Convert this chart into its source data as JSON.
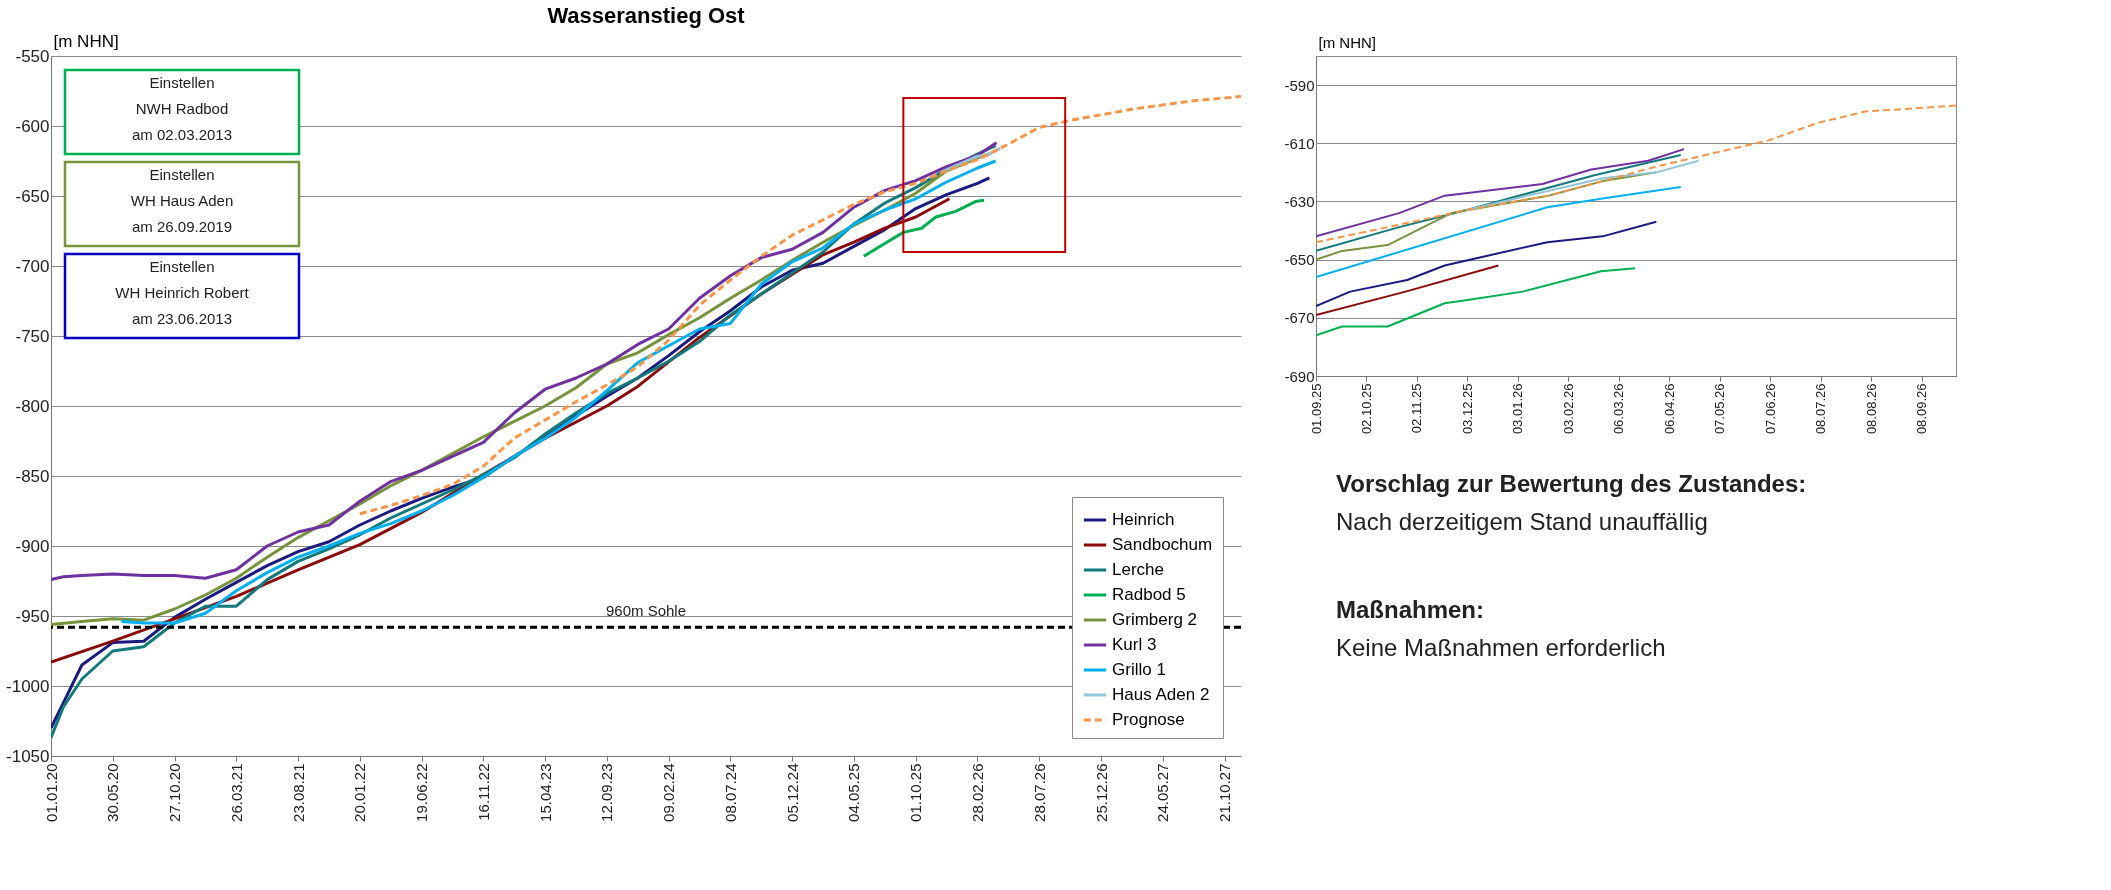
{
  "chart_data": [
    {
      "type": "line",
      "title": "Wasseranstieg Ost",
      "ylabel": "[m NHN]",
      "xlim": [
        "2020-01-01",
        "2027-11-30"
      ],
      "ylim": [
        -1050,
        -550
      ],
      "xticks": [
        {
          "value": "2020-01-01",
          "label": "01.01.20"
        },
        {
          "value": "2020-05-30",
          "label": "30.05.20"
        },
        {
          "value": "2020-10-27",
          "label": "27.10.20"
        },
        {
          "value": "2021-03-26",
          "label": "26.03.21"
        },
        {
          "value": "2021-08-23",
          "label": "23.08.21"
        },
        {
          "value": "2022-01-20",
          "label": "20.01.22"
        },
        {
          "value": "2022-06-19",
          "label": "19.06.22"
        },
        {
          "value": "2022-11-16",
          "label": "16.11.22"
        },
        {
          "value": "2023-04-15",
          "label": "15.04.23"
        },
        {
          "value": "2023-09-12",
          "label": "12.09.23"
        },
        {
          "value": "2024-02-09",
          "label": "09.02.24"
        },
        {
          "value": "2024-07-08",
          "label": "08.07.24"
        },
        {
          "value": "2024-12-05",
          "label": "05.12.24"
        },
        {
          "value": "2025-05-04",
          "label": "04.05.25"
        },
        {
          "value": "2025-10-01",
          "label": "01.10.25"
        },
        {
          "value": "2026-02-28",
          "label": "28.02.26"
        },
        {
          "value": "2026-07-28",
          "label": "28.07.26"
        },
        {
          "value": "2026-12-25",
          "label": "25.12.26"
        },
        {
          "value": "2027-05-24",
          "label": "24.05.27"
        },
        {
          "value": "2027-10-21",
          "label": "21.10.27"
        }
      ],
      "yticks": [
        -1050,
        -1000,
        -950,
        -900,
        -850,
        -800,
        -750,
        -700,
        -650,
        -600,
        -550
      ],
      "grid": "y",
      "legend": "bottom right",
      "line_style": "solid",
      "annotations": [
        "Einstellen\nNWH Radbod\nam 02.03.2013",
        "Einstellen\nWH Haus Aden\nam 26.09.2019",
        "Einstellen\nWH Heinrich Robert\nam 23.06.2013"
      ],
      "ref_lines": [
        {
          "axis": "y",
          "value": -958,
          "label": "960m Sohle",
          "color": "#000000",
          "line_style": "dashed"
        }
      ],
      "series": [
        {
          "name": "Heinrich",
          "color": "#1a1a80",
          "x": [
            "2020-01-01",
            "2020-01-31",
            "2020-03-16",
            "2020-05-30",
            "2020-08-13",
            "2020-10-27",
            "2021-01-10",
            "2021-03-26",
            "2021-06-09",
            "2021-08-23",
            "2021-11-06",
            "2022-01-20",
            "2022-04-05",
            "2022-06-19",
            "2022-09-02",
            "2022-11-16",
            "2023-01-30",
            "2023-04-15",
            "2023-06-29",
            "2023-09-12",
            "2023-11-26",
            "2024-02-09",
            "2024-04-24",
            "2024-07-08",
            "2024-09-21",
            "2024-12-05",
            "2025-02-18",
            "2025-05-04",
            "2025-07-18",
            "2025-10-01",
            "2025-12-15",
            "2026-02-28",
            "2026-03-29"
          ],
          "values": [
            -1030,
            -1012,
            -985,
            -969,
            -968,
            -951,
            -938,
            -926,
            -914,
            -904,
            -897,
            -885,
            -875,
            -866,
            -858,
            -851,
            -836,
            -822,
            -807,
            -793,
            -780,
            -764,
            -747,
            -732,
            -715,
            -703,
            -698,
            -686,
            -674,
            -659,
            -649,
            -641,
            -637
          ]
        },
        {
          "name": "Sandbochum",
          "color": "#8b0a0a",
          "x": [
            "2020-01-01",
            "2020-05-30",
            "2020-10-27",
            "2021-03-26",
            "2021-08-23",
            "2022-01-20",
            "2022-06-19",
            "2022-11-16",
            "2023-04-15",
            "2023-09-12",
            "2023-11-26",
            "2024-04-24",
            "2024-09-21",
            "2025-02-18",
            "2025-05-04",
            "2025-07-18",
            "2025-10-01",
            "2025-12-22"
          ],
          "values": [
            -983,
            -968,
            -952,
            -936,
            -917,
            -899,
            -876,
            -849,
            -823,
            -800,
            -786,
            -751,
            -720,
            -692,
            -683,
            -673,
            -665,
            -652
          ]
        },
        {
          "name": "Lerche",
          "color": "#127a7a",
          "x": [
            "2020-01-01",
            "2020-01-31",
            "2020-03-16",
            "2020-05-30",
            "2020-08-13",
            "2020-10-27",
            "2021-01-10",
            "2021-03-26",
            "2021-06-09",
            "2021-08-23",
            "2021-11-06",
            "2022-01-20",
            "2022-04-05",
            "2022-06-19",
            "2022-09-02",
            "2022-11-16",
            "2023-01-30",
            "2023-04-15",
            "2023-06-29",
            "2023-09-12",
            "2023-11-26",
            "2024-02-09",
            "2024-04-24",
            "2024-07-08",
            "2024-09-21",
            "2024-12-05",
            "2025-02-18",
            "2025-05-04",
            "2025-07-18",
            "2025-10-01",
            "2025-12-15",
            "2026-02-28",
            "2026-04-13"
          ],
          "values": [
            -1037,
            -1015,
            -995,
            -975,
            -972,
            -955,
            -943,
            -943,
            -924,
            -911,
            -902,
            -892,
            -880,
            -870,
            -860,
            -849,
            -837,
            -820,
            -805,
            -791,
            -780,
            -768,
            -754,
            -735,
            -720,
            -705,
            -690,
            -670,
            -655,
            -644,
            -631,
            -620,
            -614
          ]
        },
        {
          "name": "Radbod 5",
          "color": "#00b050",
          "x": [
            "2025-05-28",
            "2025-07-23",
            "2025-09-01",
            "2025-10-15",
            "2025-11-19",
            "2026-01-06",
            "2026-02-23",
            "2026-03-16"
          ],
          "values": [
            -693,
            -683,
            -676,
            -673,
            -665,
            -661,
            -654,
            -653
          ]
        },
        {
          "name": "Grimberg 2",
          "color": "#77933c",
          "x": [
            "2020-01-01",
            "2020-03-16",
            "2020-05-30",
            "2020-08-13",
            "2020-10-27",
            "2021-01-10",
            "2021-03-26",
            "2021-06-09",
            "2021-08-23",
            "2021-11-06",
            "2022-01-20",
            "2022-04-05",
            "2022-06-19",
            "2022-09-02",
            "2022-11-16",
            "2023-01-30",
            "2023-04-15",
            "2023-06-29",
            "2023-09-12",
            "2023-11-26",
            "2024-02-09",
            "2024-04-24",
            "2024-07-08",
            "2024-09-21",
            "2024-12-05",
            "2025-02-18",
            "2025-05-04",
            "2025-07-18",
            "2025-10-01",
            "2025-12-15",
            "2026-02-28",
            "2026-03-29"
          ],
          "values": [
            -956,
            -954,
            -952,
            -953,
            -945,
            -935,
            -923,
            -908,
            -894,
            -882,
            -870,
            -857,
            -846,
            -834,
            -822,
            -811,
            -800,
            -787,
            -770,
            -762,
            -749,
            -737,
            -723,
            -710,
            -696,
            -683,
            -671,
            -660,
            -648,
            -632,
            -623,
            -620
          ]
        },
        {
          "name": "Kurl 3",
          "color": "#7030a0",
          "x": [
            "2020-01-01",
            "2020-01-31",
            "2020-03-16",
            "2020-05-30",
            "2020-08-13",
            "2020-10-27",
            "2021-01-10",
            "2021-03-26",
            "2021-06-09",
            "2021-08-23",
            "2021-11-06",
            "2022-01-20",
            "2022-04-05",
            "2022-06-19",
            "2022-09-02",
            "2022-11-16",
            "2023-01-30",
            "2023-04-15",
            "2023-06-29",
            "2023-09-12",
            "2023-11-26",
            "2024-02-09",
            "2024-04-24",
            "2024-07-08",
            "2024-09-21",
            "2024-12-05",
            "2025-02-18",
            "2025-05-04",
            "2025-07-18",
            "2025-10-01",
            "2025-12-15",
            "2026-02-28",
            "2026-04-15"
          ],
          "values": [
            -924,
            -922,
            -921,
            -920,
            -921,
            -921,
            -923,
            -917,
            -900,
            -890,
            -885,
            -868,
            -854,
            -846,
            -836,
            -826,
            -805,
            -788,
            -780,
            -770,
            -756,
            -745,
            -723,
            -707,
            -694,
            -688,
            -676,
            -658,
            -646,
            -639,
            -629,
            -621,
            -612
          ]
        },
        {
          "name": "Grillo 1",
          "color": "#00b0f0",
          "x": [
            "2020-06-20",
            "2020-08-13",
            "2020-10-27",
            "2021-01-10",
            "2021-03-26",
            "2021-06-09",
            "2021-08-23",
            "2021-11-06",
            "2022-01-20",
            "2022-04-05",
            "2022-06-19",
            "2022-09-02",
            "2022-11-16",
            "2023-01-30",
            "2023-04-15",
            "2023-06-29",
            "2023-09-12",
            "2023-11-26",
            "2024-02-09",
            "2024-04-24",
            "2024-07-08",
            "2024-09-21",
            "2024-12-05",
            "2025-02-18",
            "2025-05-04",
            "2025-07-18",
            "2025-10-01",
            "2025-12-15",
            "2026-02-28",
            "2026-04-13"
          ],
          "values": [
            -954,
            -955,
            -955,
            -948,
            -932,
            -919,
            -908,
            -900,
            -891,
            -884,
            -875,
            -864,
            -851,
            -836,
            -823,
            -808,
            -789,
            -769,
            -757,
            -745,
            -741,
            -713,
            -697,
            -687,
            -670,
            -660,
            -652,
            -640,
            -630,
            -625
          ]
        },
        {
          "name": "Haus Aden 2",
          "color": "#93c4d8",
          "x": [
            "2025-12-02",
            "2026-02-24",
            "2026-03-29",
            "2026-04-24"
          ],
          "values": [
            -633,
            -622,
            -620,
            -616
          ]
        },
        {
          "name": "Prognose",
          "color": "#f79646",
          "line_style": "dashed",
          "x": [
            "2022-01-20",
            "2022-04-05",
            "2022-06-19",
            "2022-09-02",
            "2022-11-16",
            "2023-01-30",
            "2023-04-15",
            "2023-06-29",
            "2023-09-12",
            "2023-11-26",
            "2024-02-09",
            "2024-04-24",
            "2024-07-08",
            "2024-09-21",
            "2024-12-05",
            "2025-02-18",
            "2025-05-04",
            "2025-07-18",
            "2025-10-01",
            "2025-12-15",
            "2026-02-28",
            "2026-05-14",
            "2026-07-28",
            "2026-10-11",
            "2026-12-25",
            "2027-03-10",
            "2027-05-24",
            "2027-08-07",
            "2027-10-21",
            "2027-11-30"
          ],
          "values": [
            -877,
            -871,
            -864,
            -856,
            -843,
            -823,
            -810,
            -797,
            -785,
            -772,
            -753,
            -728,
            -710,
            -693,
            -678,
            -667,
            -656,
            -647,
            -641,
            -632,
            -624,
            -613,
            -601,
            -596,
            -592,
            -588,
            -585,
            -582,
            -580,
            -579
          ]
        }
      ]
    },
    {
      "type": "line",
      "ylabel": "[m NHN]",
      "xlim": [
        "2025-09-01",
        "2026-09-29"
      ],
      "ylim": [
        -690,
        -580
      ],
      "xticks": [
        {
          "value": "2025-09-01",
          "label": "01.09.25"
        },
        {
          "value": "2025-10-02",
          "label": "02.10.25"
        },
        {
          "value": "2025-11-02",
          "label": "02.11.25"
        },
        {
          "value": "2025-12-03",
          "label": "03.12.25"
        },
        {
          "value": "2026-01-03",
          "label": "03.01.26"
        },
        {
          "value": "2026-02-03",
          "label": "03.02.26"
        },
        {
          "value": "2026-03-06",
          "label": "06.03.26"
        },
        {
          "value": "2026-04-06",
          "label": "06.04.26"
        },
        {
          "value": "2026-05-07",
          "label": "07.05.26"
        },
        {
          "value": "2026-06-07",
          "label": "07.06.26"
        },
        {
          "value": "2026-07-08",
          "label": "08.07.26"
        },
        {
          "value": "2026-08-08",
          "label": "08.08.26"
        },
        {
          "value": "2026-09-08",
          "label": "08.09.26"
        }
      ],
      "yticks": [
        -690,
        -670,
        -650,
        -630,
        -610,
        -590
      ],
      "grid": "y",
      "line_style": "solid",
      "series": [
        {
          "color": "#1a1a80",
          "x": [
            "2025-09-01",
            "2025-09-22",
            "2025-10-27",
            "2025-11-19",
            "2026-01-21",
            "2026-02-24",
            "2026-03-29"
          ],
          "values": [
            -666,
            -661,
            -657,
            -652,
            -644,
            -642,
            -637
          ]
        },
        {
          "color": "#8b0a0a",
          "x": [
            "2025-09-01",
            "2025-10-26",
            "2025-12-22"
          ],
          "values": [
            -669,
            -661,
            -652
          ]
        },
        {
          "color": "#127a7a",
          "x": [
            "2025-09-01",
            "2025-10-21",
            "2025-12-02",
            "2026-02-19",
            "2026-04-13"
          ],
          "values": [
            -647,
            -639,
            -633,
            -621,
            -614
          ]
        },
        {
          "color": "#00b050",
          "x": [
            "2025-09-01",
            "2025-09-17",
            "2025-10-15",
            "2025-11-19",
            "2025-12-02",
            "2026-01-06",
            "2026-02-23",
            "2026-03-16"
          ],
          "values": [
            -676,
            -673,
            -673,
            -665,
            -664,
            -661,
            -654,
            -653
          ]
        },
        {
          "color": "#77933c",
          "x": [
            "2025-09-01",
            "2025-09-17",
            "2025-10-15",
            "2025-11-23",
            "2026-01-22",
            "2026-02-24",
            "2026-03-29"
          ],
          "values": [
            -650,
            -647,
            -645,
            -634,
            -628,
            -623,
            -620
          ]
        },
        {
          "color": "#7030a0",
          "x": [
            "2025-09-01",
            "2025-10-22",
            "2025-11-19",
            "2026-01-18",
            "2026-02-17",
            "2026-03-24",
            "2026-04-15"
          ],
          "values": [
            -642,
            -634,
            -628,
            -624,
            -619,
            -616,
            -612
          ]
        },
        {
          "color": "#00b0f0",
          "x": [
            "2025-09-01",
            "2026-01-21",
            "2026-02-24",
            "2026-04-13"
          ],
          "values": [
            -656,
            -632,
            -629,
            -625
          ]
        },
        {
          "color": "#93c4d8",
          "x": [
            "2025-12-02",
            "2026-02-24",
            "2026-03-29",
            "2026-04-24"
          ],
          "values": [
            -633,
            -622,
            -620,
            -616
          ]
        },
        {
          "color": "#f79646",
          "line_style": "dashed",
          "x": [
            "2025-09-01",
            "2025-10-22",
            "2025-12-02",
            "2026-01-22",
            "2026-03-29",
            "2026-05-06",
            "2026-06-06",
            "2026-07-06",
            "2026-08-05",
            "2026-09-04",
            "2026-09-29"
          ],
          "values": [
            -644,
            -638,
            -633,
            -628,
            -618,
            -613,
            -609,
            -603,
            -599,
            -598,
            -597
          ]
        }
      ]
    },
    {
      "type": "other",
      "annotations": [
        "Vorschlag zur Bewertung des Zustandes:",
        "Nach derzeitigem Stand unauffällig",
        "Maßnahmen:",
        "Keine Maßnahmen erforderlich"
      ]
    }
  ]
}
